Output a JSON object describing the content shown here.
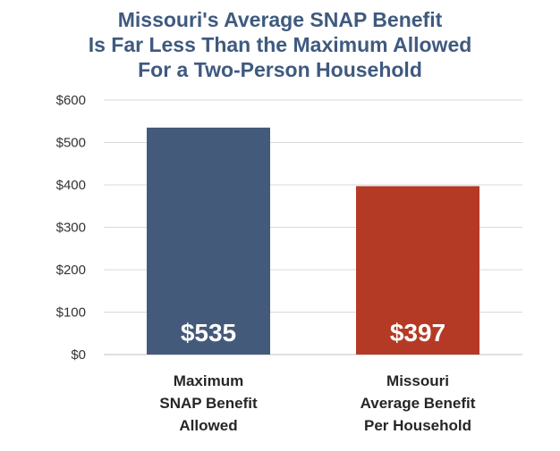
{
  "chart_data": {
    "type": "bar",
    "title_lines": [
      "Missouri's Average SNAP Benefit",
      "Is Far Less Than the Maximum Allowed",
      "For a Two-Person Household"
    ],
    "categories": [
      [
        "Maximum",
        "SNAP Benefit",
        "Allowed"
      ],
      [
        "Missouri",
        "Average Benefit",
        "Per Household"
      ]
    ],
    "values": [
      535,
      397
    ],
    "data_labels": [
      "$535",
      "$397"
    ],
    "colors": [
      "#445a7a",
      "#b53a25"
    ],
    "ylim": [
      0,
      600
    ],
    "yticks": [
      0,
      100,
      200,
      300,
      400,
      500,
      600
    ],
    "ytick_labels": [
      "$0",
      "$100",
      "$200",
      "$300",
      "$400",
      "$500",
      "$600"
    ],
    "grid": true,
    "xlabel": "",
    "ylabel": ""
  }
}
